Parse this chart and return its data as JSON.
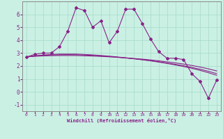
{
  "xlabel": "Windchill (Refroidissement éolien,°C)",
  "bg_color": "#caf0e4",
  "grid_color": "#aaddcc",
  "line_color": "#882288",
  "x": [
    0,
    1,
    2,
    3,
    4,
    5,
    6,
    7,
    8,
    9,
    10,
    11,
    12,
    13,
    14,
    15,
    16,
    17,
    18,
    19,
    20,
    21,
    22,
    23
  ],
  "y_main": [
    2.7,
    2.9,
    3.0,
    3.0,
    3.5,
    4.7,
    6.5,
    6.3,
    5.0,
    5.5,
    3.8,
    4.7,
    6.4,
    6.4,
    5.3,
    4.1,
    3.1,
    2.6,
    2.6,
    2.5,
    1.4,
    0.8,
    -0.5,
    0.9
  ],
  "y_reg1": [
    2.7,
    2.75,
    2.78,
    2.8,
    2.81,
    2.81,
    2.81,
    2.79,
    2.77,
    2.74,
    2.71,
    2.67,
    2.63,
    2.58,
    2.53,
    2.47,
    2.4,
    2.32,
    2.24,
    2.15,
    2.04,
    1.92,
    1.78,
    1.62
  ],
  "y_reg2": [
    2.7,
    2.77,
    2.82,
    2.85,
    2.87,
    2.88,
    2.87,
    2.85,
    2.82,
    2.78,
    2.73,
    2.68,
    2.62,
    2.56,
    2.49,
    2.41,
    2.33,
    2.23,
    2.13,
    2.02,
    1.89,
    1.75,
    1.59,
    1.41
  ],
  "y_reg3": [
    2.7,
    2.79,
    2.85,
    2.89,
    2.92,
    2.92,
    2.92,
    2.89,
    2.86,
    2.81,
    2.76,
    2.7,
    2.63,
    2.56,
    2.48,
    2.4,
    2.3,
    2.2,
    2.08,
    1.96,
    1.82,
    1.66,
    1.48,
    1.28
  ],
  "ylim": [
    -1.5,
    7.0
  ],
  "xlim": [
    -0.5,
    23.5
  ],
  "yticks": [
    -1,
    0,
    1,
    2,
    3,
    4,
    5,
    6
  ],
  "xticks": [
    0,
    1,
    2,
    3,
    4,
    5,
    6,
    7,
    8,
    9,
    10,
    11,
    12,
    13,
    14,
    15,
    16,
    17,
    18,
    19,
    20,
    21,
    22,
    23
  ]
}
